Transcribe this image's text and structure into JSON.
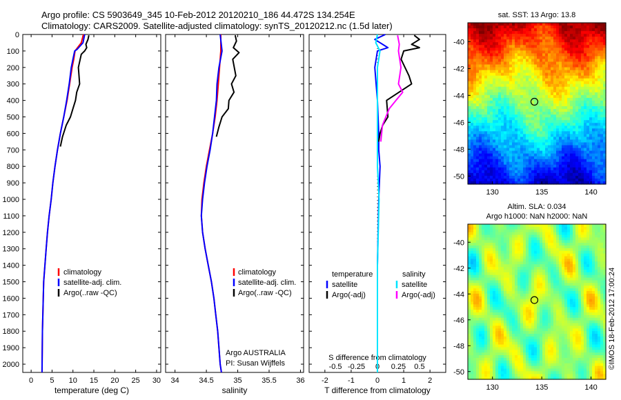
{
  "header": {
    "line1": "Argo profile: CS 5903649_345 10-Feb-2012 20120210_186 44.472S 134.254E",
    "line2": "Climatology: CARS2009. Satellite-adjusted climatology: synTS_20120212.nc (1.5d later)"
  },
  "colors": {
    "climatology": "#ff0000",
    "satellite": "#0000ff",
    "argo": "#000000",
    "sal_satellite": "#00e5ff",
    "sal_argo": "#ff00ff"
  },
  "chart_data": [
    {
      "type": "line",
      "id": "temperature",
      "xlabel": "temperature (deg C)",
      "xlim": [
        -2,
        31
      ],
      "xticks": [
        "0",
        "5",
        "10",
        "15",
        "20",
        "25",
        "30"
      ],
      "xtick_values": [
        0,
        5,
        10,
        15,
        20,
        25,
        30
      ],
      "ylim": [
        0,
        2050
      ],
      "yticks": [
        "0",
        "100",
        "200",
        "300",
        "400",
        "500",
        "600",
        "700",
        "800",
        "900",
        "1000",
        "1100",
        "1200",
        "1300",
        "1400",
        "1500",
        "1600",
        "1700",
        "1800",
        "1900",
        "2000"
      ],
      "ytick_values": [
        0,
        100,
        200,
        300,
        400,
        500,
        600,
        700,
        800,
        900,
        1000,
        1100,
        1200,
        1300,
        1400,
        1500,
        1600,
        1700,
        1800,
        1900,
        2000
      ],
      "legend": [
        "climatology",
        "satellite-adj. clim.",
        "Argo(..raw -QC)"
      ],
      "series": [
        {
          "name": "climatology",
          "color_key": "climatology",
          "x": [
            12.5,
            12.0,
            10.8,
            10.5,
            10.2,
            9.8,
            9.2,
            8.6,
            7.8,
            7.0,
            6.3,
            5.7,
            5.2,
            4.8,
            4.3,
            3.9,
            3.6,
            3.3,
            3.0,
            2.9,
            2.8,
            2.7,
            2.6
          ],
          "y": [
            0,
            50,
            90,
            100,
            150,
            200,
            300,
            400,
            500,
            600,
            700,
            800,
            900,
            1000,
            1100,
            1200,
            1300,
            1400,
            1500,
            1600,
            1700,
            1800,
            2050
          ]
        },
        {
          "name": "satellite-adj. clim.",
          "color_key": "satellite",
          "x": [
            12.8,
            12.4,
            11.0,
            10.4,
            10.0,
            9.6,
            9.1,
            8.5,
            7.8,
            7.0,
            6.3,
            5.7,
            5.2,
            4.8,
            4.3,
            3.9,
            3.6,
            3.3,
            3.0,
            2.9,
            2.8,
            2.7,
            2.6
          ],
          "y": [
            0,
            50,
            90,
            100,
            150,
            200,
            300,
            400,
            500,
            600,
            700,
            800,
            900,
            1000,
            1100,
            1200,
            1300,
            1400,
            1500,
            1600,
            1700,
            1800,
            2050
          ]
        },
        {
          "name": "Argo(..raw -QC)",
          "color_key": "argo",
          "x": [
            13.8,
            13.6,
            13.1,
            13.3,
            12.8,
            12.0,
            11.3,
            11.6,
            10.9,
            10.6,
            10.0,
            9.4,
            8.4,
            7.5,
            7.0
          ],
          "y": [
            5,
            30,
            60,
            80,
            100,
            120,
            200,
            300,
            350,
            400,
            450,
            500,
            550,
            620,
            680
          ]
        }
      ]
    },
    {
      "type": "line",
      "id": "salinity",
      "xlabel": "salinity",
      "xlim": [
        33.85,
        36.05
      ],
      "xticks": [
        "34",
        "34.5",
        "35",
        "35.5",
        "36"
      ],
      "xtick_values": [
        34,
        34.5,
        35,
        35.5,
        36
      ],
      "ylim": [
        0,
        2050
      ],
      "legend": [
        "climatology",
        "satellite-adj. clim.",
        "Argo(..raw -QC)"
      ],
      "annotation": [
        "Argo AUSTRALIA",
        "PI: Susan Wijffels"
      ],
      "series": [
        {
          "name": "climatology",
          "color_key": "climatology",
          "x": [
            34.73,
            34.73,
            34.71,
            34.69,
            34.67,
            34.64,
            34.6,
            34.55,
            34.5,
            34.46,
            34.43,
            34.42,
            34.44,
            34.48,
            34.53,
            34.58,
            34.62,
            34.65,
            34.68,
            34.7,
            34.72,
            34.74
          ],
          "y": [
            0,
            100,
            200,
            300,
            400,
            500,
            600,
            700,
            800,
            900,
            1000,
            1100,
            1200,
            1300,
            1400,
            1500,
            1600,
            1700,
            1800,
            1900,
            2000,
            2050
          ]
        },
        {
          "name": "satellite-adj. clim.",
          "color_key": "satellite",
          "x": [
            34.72,
            34.75,
            34.7,
            34.67,
            34.66,
            34.63,
            34.6,
            34.56,
            34.51,
            34.47,
            34.44,
            34.42,
            34.44,
            34.48,
            34.53,
            34.58,
            34.62,
            34.65,
            34.68,
            34.7,
            34.72,
            34.74
          ],
          "y": [
            0,
            100,
            200,
            300,
            400,
            500,
            600,
            700,
            800,
            900,
            1000,
            1100,
            1200,
            1300,
            1400,
            1500,
            1600,
            1700,
            1800,
            1900,
            2000,
            2050
          ]
        },
        {
          "name": "Argo(..raw -QC)",
          "color_key": "argo",
          "x": [
            34.96,
            34.98,
            34.93,
            35.02,
            34.92,
            34.97,
            34.9,
            34.94,
            34.86,
            34.85,
            34.75,
            34.7,
            34.66
          ],
          "y": [
            5,
            40,
            80,
            110,
            150,
            250,
            300,
            350,
            400,
            450,
            500,
            560,
            620
          ]
        }
      ]
    },
    {
      "type": "line",
      "id": "difference",
      "xlabel": "T difference from climatology",
      "xlabel_top": "S difference from climatology",
      "xlim": [
        -2.6,
        2.6
      ],
      "xticks": [
        "-2",
        "-1",
        "0",
        "1",
        "2"
      ],
      "xtick_values": [
        -2,
        -1,
        0,
        1,
        2
      ],
      "xticks_top": [
        "-0.5",
        "-0.25",
        "0",
        "0.25",
        "0.5"
      ],
      "xtick_top_values": [
        -0.5,
        -0.25,
        0,
        0.25,
        0.5
      ],
      "ylim": [
        0,
        2050
      ],
      "legend_temperature": {
        "title": "temperature",
        "items": [
          "satellite",
          "Argo(-adj)"
        ]
      },
      "legend_salinity": {
        "title": "salinity",
        "items": [
          "satellite",
          "Argo(-adj)"
        ]
      },
      "series": [
        {
          "name": "satellite",
          "group": "temperature",
          "color_key": "satellite",
          "x": [
            0.3,
            -0.1,
            0.4,
            0.0,
            -0.1,
            0.0,
            0.05,
            0.05,
            0.1,
            0.05,
            0.0,
            0.0,
            0.0
          ],
          "y": [
            0,
            30,
            80,
            100,
            200,
            400,
            600,
            700,
            800,
            1000,
            1400,
            1800,
            2050
          ]
        },
        {
          "name": "Argo(-adj)",
          "group": "temperature",
          "color_key": "argo",
          "x": [
            1.4,
            1.6,
            1.3,
            1.6,
            1.0,
            0.9,
            1.2,
            1.3,
            0.35,
            0.4,
            0.2,
            0.1,
            0.05
          ],
          "y": [
            5,
            30,
            60,
            80,
            100,
            150,
            250,
            300,
            400,
            500,
            550,
            600,
            650
          ]
        },
        {
          "name": "satellite",
          "group": "salinity",
          "color_key": "sal_satellite",
          "x": [
            0.0,
            -0.02,
            0.03,
            0.0,
            0.0,
            0.0,
            0.02,
            0.0,
            0.0,
            0.0
          ],
          "y": [
            0,
            50,
            100,
            200,
            600,
            800,
            1000,
            1400,
            1800,
            2050
          ]
        },
        {
          "name": "Argo(-adj)",
          "group": "salinity",
          "color_key": "sal_argo",
          "x": [
            0.24,
            0.26,
            0.25,
            0.28,
            0.25,
            0.3,
            0.22,
            0.14,
            0.06,
            0.04
          ],
          "y": [
            5,
            60,
            100,
            200,
            300,
            350,
            400,
            450,
            550,
            650
          ]
        }
      ]
    },
    {
      "type": "heatmap",
      "id": "sst",
      "title": "sat. SST: 13 Argo: 13.8",
      "xlim": [
        127.5,
        141.5
      ],
      "ylim": [
        -50.6,
        -38.6
      ],
      "xticks": [
        "130",
        "135",
        "140"
      ],
      "xtick_values": [
        130,
        135,
        140
      ],
      "yticks": [
        "-40",
        "-42",
        "-44",
        "-46",
        "-48",
        "-50"
      ],
      "ytick_values": [
        -40,
        -42,
        -44,
        -46,
        -48,
        -50
      ],
      "marker": {
        "lon": 134.254,
        "lat": -44.472
      }
    },
    {
      "type": "heatmap",
      "id": "sla",
      "title": "Altim. SLA: 0.034",
      "subtitle": "Argo h1000: NaN h2000: NaN",
      "xlim": [
        127.5,
        141.5
      ],
      "ylim": [
        -50.6,
        -38.6
      ],
      "xticks": [
        "130",
        "135",
        "140"
      ],
      "xtick_values": [
        130,
        135,
        140
      ],
      "yticks": [
        "-40",
        "-42",
        "-44",
        "-46",
        "-48",
        "-50"
      ],
      "ytick_values": [
        -40,
        -42,
        -44,
        -46,
        -48,
        -50
      ],
      "marker": {
        "lon": 134.254,
        "lat": -44.472
      }
    }
  ],
  "credit": "©IMOS 18-Feb-2012 17:00:24"
}
